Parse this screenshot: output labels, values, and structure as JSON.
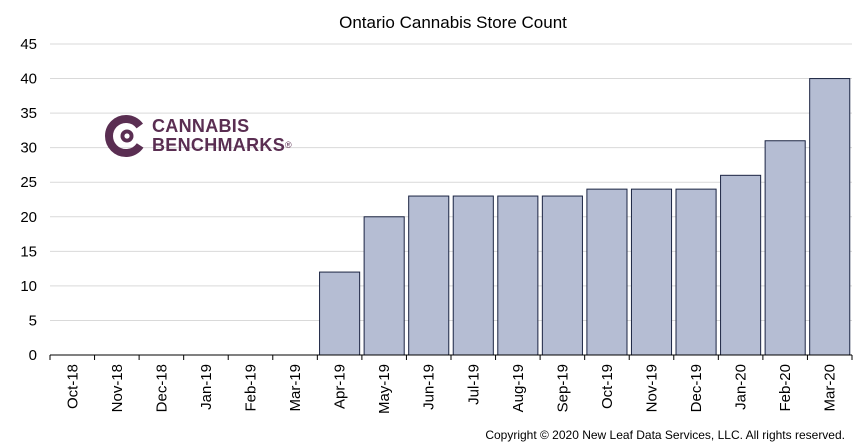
{
  "logo": {
    "line1": "CANNABIS",
    "line2": "BENCHMARKS",
    "mark": "®"
  },
  "copyright": "Copyright © 2020 New Leaf Data Services, LLC. All rights reserved.",
  "chart_data": {
    "type": "bar",
    "title": "Ontario Cannabis Store Count",
    "xlabel": "",
    "ylabel": "",
    "categories": [
      "Oct-18",
      "Nov-18",
      "Dec-18",
      "Jan-19",
      "Feb-19",
      "Mar-19",
      "Apr-19",
      "May-19",
      "Jun-19",
      "Jul-19",
      "Aug-19",
      "Sep-19",
      "Oct-19",
      "Nov-19",
      "Dec-19",
      "Jan-20",
      "Feb-20",
      "Mar-20"
    ],
    "values": [
      0,
      0,
      0,
      0,
      0,
      0,
      12,
      20,
      23,
      23,
      23,
      23,
      24,
      24,
      24,
      26,
      31,
      40
    ],
    "ylim": [
      0,
      45
    ],
    "yticks": [
      0,
      5,
      10,
      15,
      20,
      25,
      30,
      35,
      40,
      45
    ],
    "grid": true,
    "legend": "none",
    "bar_color": "#b5bdd3",
    "bar_edge_color": "#1b2442",
    "grid_color": "#d9d9d9"
  }
}
